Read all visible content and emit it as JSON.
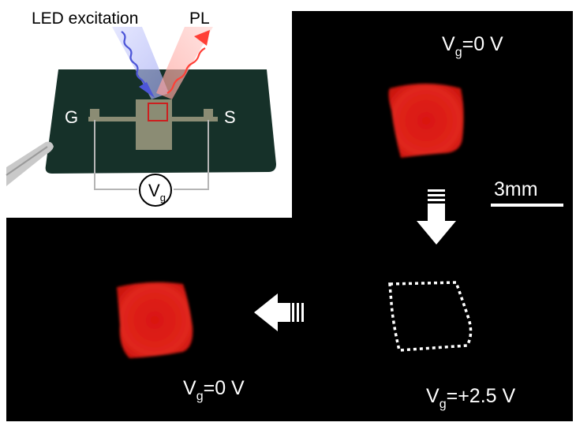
{
  "inset": {
    "led_label": "LED excitation",
    "pl_label": "PL",
    "gate_label": "G",
    "source_label": "S",
    "voltmeter": {
      "main": "V",
      "sub": "g"
    }
  },
  "panels": {
    "top_right": {
      "v_main": "V",
      "v_sub": "g",
      "v_value": "=0 V"
    },
    "bottom_right": {
      "v_main": "V",
      "v_sub": "g",
      "v_value": "=+2.5 V"
    },
    "bottom_left": {
      "v_main": "V",
      "v_sub": "g",
      "v_value": "=0 V"
    }
  },
  "scale_bar": {
    "label": "3mm"
  },
  "colors": {
    "background": "#000000",
    "pl_red": "#e01a12",
    "substrate": "#163129",
    "electrode": "#8b8c74",
    "excitation": "#5b66e0",
    "emission": "#ff5a52"
  }
}
